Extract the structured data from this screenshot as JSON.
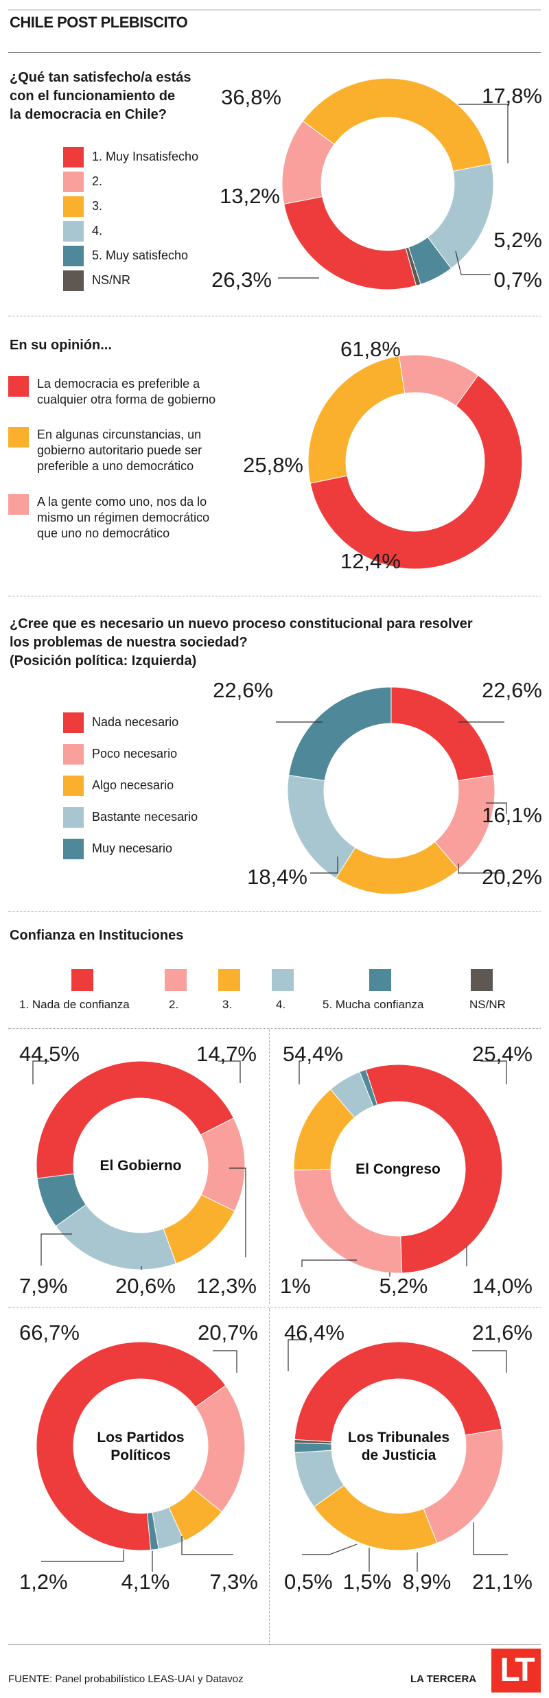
{
  "header": {
    "title": "CHILE POST PLEBISCITO"
  },
  "colors": {
    "red": "#ee3b3b",
    "pink": "#f9a09c",
    "orange": "#fbb02d",
    "lightblue": "#a8c6cf",
    "teal": "#4f8898",
    "gray": "#5e5752"
  },
  "section1": {
    "question": [
      "¿Qué tan satisfecho/a estás",
      "con el  funcionamiento de",
      "la democracia en Chile?"
    ],
    "legend": [
      "1. Muy Insatisfecho",
      "2.",
      "3.",
      "4.",
      "5. Muy satisfecho",
      "NS/NR"
    ]
  },
  "section2": {
    "question": "En su opinión...",
    "legend": [
      [
        "La democracia es preferible a",
        "cualquier otra forma de gobierno"
      ],
      [
        "En algunas circunstancias, un",
        "gobierno autoritario puede ser",
        "preferible a uno democrático"
      ],
      [
        "A la gente como uno, nos da lo",
        "mismo un régimen democrático",
        "que uno no democrático"
      ]
    ]
  },
  "section3": {
    "question": [
      "¿Cree que es necesario un nuevo proceso constitucional para resolver",
      "los problemas de nuestra sociedad?",
      "(Posición política: Izquierda)"
    ],
    "legend": [
      "Nada necesario",
      "Poco necesario",
      "Algo necesario",
      "Bastante necesario",
      "Muy necesario"
    ]
  },
  "section4": {
    "title": "Confianza en Instituciones",
    "legend": [
      "1. Nada de confianza",
      "2.",
      "3.",
      "4.",
      "5. Mucha confianza",
      "NS/NR"
    ]
  },
  "chart_data": [
    {
      "type": "pie",
      "id": "satisfaccion",
      "categories": [
        "1. Muy Insatisfecho",
        "2.",
        "3.",
        "4.",
        "5. Muy satisfecho",
        "NS/NR"
      ],
      "values": [
        26.3,
        13.2,
        36.8,
        17.8,
        5.2,
        0.7
      ],
      "labels": [
        "26,3%",
        "13,2%",
        "36,8%",
        "17,8%",
        "5,2%",
        "0,7%"
      ]
    },
    {
      "type": "pie",
      "id": "opinion",
      "categories": [
        "La democracia es preferible a cualquier otra forma de gobierno",
        "En algunas circunstancias, un gobierno autoritario puede ser preferible a uno democrático",
        "A la gente como uno, nos da lo mismo un régimen democrático que uno no democrático"
      ],
      "values": [
        61.8,
        25.8,
        12.4
      ],
      "labels": [
        "61,8%",
        "25,8%",
        "12,4%"
      ]
    },
    {
      "type": "pie",
      "id": "proceso-constitucional",
      "categories": [
        "Nada necesario",
        "Poco necesario",
        "Algo necesario",
        "Bastante necesario",
        "Muy necesario"
      ],
      "values": [
        22.6,
        16.1,
        20.2,
        18.4,
        22.6
      ],
      "labels": [
        "22,6%",
        "16,1%",
        "20,2%",
        "18,4%",
        "22,6%"
      ]
    },
    {
      "type": "pie",
      "id": "gobierno",
      "title": "El Gobierno",
      "categories": [
        "1. Nada de confianza",
        "2.",
        "3.",
        "4.",
        "5. Mucha confianza"
      ],
      "values": [
        44.5,
        14.7,
        12.3,
        20.6,
        7.9
      ],
      "labels": [
        "44,5%",
        "14,7%",
        "12,3%",
        "20,6%",
        "7,9%"
      ]
    },
    {
      "type": "pie",
      "id": "congreso",
      "title": "El Congreso",
      "categories": [
        "1. Nada de confianza",
        "2.",
        "3.",
        "4.",
        "5. Mucha confianza"
      ],
      "values": [
        54.4,
        25.4,
        14.0,
        5.2,
        1.0
      ],
      "labels": [
        "54,4%",
        "25,4%",
        "14,0%",
        "5,2%",
        "1%"
      ]
    },
    {
      "type": "pie",
      "id": "partidos",
      "title": "Los Partidos Políticos",
      "categories": [
        "1. Nada de confianza",
        "2.",
        "3.",
        "4.",
        "5. Mucha confianza"
      ],
      "values": [
        66.7,
        20.7,
        7.3,
        4.1,
        1.2
      ],
      "labels": [
        "66,7%",
        "20,7%",
        "7,3%",
        "4,1%",
        "1,2%"
      ]
    },
    {
      "type": "pie",
      "id": "tribunales",
      "title": "Los Tribunales de Justicia",
      "categories": [
        "1. Nada de confianza",
        "2.",
        "3.",
        "4.",
        "5. Mucha confianza",
        "NS/NR"
      ],
      "values": [
        46.4,
        21.6,
        21.1,
        8.9,
        1.5,
        0.5
      ],
      "labels": [
        "46,4%",
        "21,6%",
        "21,1%",
        "8,9%",
        "1,5%",
        "0,5%"
      ]
    }
  ],
  "footer": {
    "source": "FUENTE: Panel probabilístico LEAS-UAI y Datavoz",
    "brand": "LA TERCERA",
    "logo": "LT"
  }
}
